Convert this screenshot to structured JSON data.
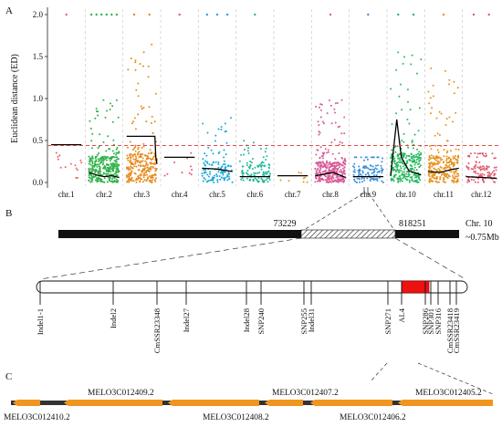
{
  "panels": {
    "a": {
      "label": "A",
      "chart_data": {
        "type": "scatter",
        "ylabel": "Euclidean distance (ED)",
        "xlabel": "",
        "ylim": [
          -0.05,
          2.1
        ],
        "yticks": [
          0.0,
          0.5,
          1.0,
          1.5,
          2.0
        ],
        "ytick_labels": [
          "0.0",
          "0.5",
          "1.0",
          "1.5",
          "2.0"
        ],
        "grid": "vertical dashed separators between chromosomes",
        "threshold": {
          "value": 0.44,
          "color": "#e8302a",
          "style": "dashed"
        },
        "categories": [
          "chr.1",
          "chr.2",
          "chr.3",
          "chr.4",
          "chr.5",
          "chr.6",
          "chr.7",
          "chr.8",
          "chr.9",
          "chr.10",
          "chr.11",
          "chr.12"
        ],
        "series": [
          {
            "category": "chr.1",
            "color": "#e06a5e",
            "n": 14,
            "bulk_max": 0.5,
            "spread": 0.15,
            "top_hits": 1,
            "fit": [
              [
                0.0,
                0.45
              ],
              [
                0.5,
                0.45
              ],
              [
                1.0,
                0.45
              ]
            ]
          },
          {
            "category": "chr.2",
            "color": "#31b24a",
            "n": 340,
            "bulk_max": 0.45,
            "spread": 1.0,
            "top_hits": 6,
            "fit": [
              [
                0.0,
                0.12
              ],
              [
                0.25,
                0.09
              ],
              [
                0.5,
                0.07
              ],
              [
                0.75,
                0.08
              ],
              [
                1.0,
                0.06
              ]
            ]
          },
          {
            "category": "chr.3",
            "color": "#e78a1e",
            "n": 260,
            "bulk_max": 0.5,
            "spread": 1.65,
            "top_hits": 2,
            "fit": [
              [
                0.0,
                0.55
              ],
              [
                0.5,
                0.55
              ],
              [
                0.93,
                0.55
              ],
              [
                0.96,
                0.3
              ],
              [
                1.0,
                0.22
              ]
            ]
          },
          {
            "category": "chr.4",
            "color": "#e05a70",
            "n": 10,
            "bulk_max": 0.35,
            "spread": 0.1,
            "top_hits": 1,
            "fit": [
              [
                0.0,
                0.3
              ],
              [
                1.0,
                0.3
              ]
            ]
          },
          {
            "category": "chr.5",
            "color": "#1aa8d8",
            "n": 120,
            "bulk_max": 0.35,
            "spread": 0.8,
            "top_hits": 3,
            "fit": [
              [
                0.0,
                0.17
              ],
              [
                0.5,
                0.16
              ],
              [
                1.0,
                0.13
              ]
            ]
          },
          {
            "category": "chr.6",
            "color": "#21b89a",
            "n": 110,
            "bulk_max": 0.3,
            "spread": 0.5,
            "top_hits": 1,
            "fit": [
              [
                0.0,
                0.07
              ],
              [
                1.0,
                0.07
              ]
            ]
          },
          {
            "category": "chr.7",
            "color": "#d6a21a",
            "n": 8,
            "bulk_max": 0.12,
            "spread": 0.0,
            "top_hits": 0,
            "fit": [
              [
                0.0,
                0.08
              ],
              [
                1.0,
                0.08
              ]
            ]
          },
          {
            "category": "chr.8",
            "color": "#d75d9a",
            "n": 340,
            "bulk_max": 0.35,
            "spread": 1.0,
            "top_hits": 1,
            "fit": [
              [
                0.0,
                0.08
              ],
              [
                0.3,
                0.1
              ],
              [
                0.6,
                0.12
              ],
              [
                1.0,
                0.06
              ]
            ]
          },
          {
            "category": "chr.9",
            "color": "#3c8ed8",
            "n": 110,
            "bulk_max": 0.3,
            "spread": 0.3,
            "top_hits": 1,
            "fit": [
              [
                0.0,
                0.07
              ],
              [
                1.0,
                0.07
              ]
            ]
          },
          {
            "category": "chr.10",
            "color": "#29b860",
            "n": 280,
            "bulk_max": 0.5,
            "spread": 1.7,
            "top_hits": 2,
            "fit": [
              [
                0.0,
                0.08
              ],
              [
                0.2,
                0.75
              ],
              [
                0.35,
                0.3
              ],
              [
                0.6,
                0.14
              ],
              [
                1.0,
                0.09
              ]
            ]
          },
          {
            "category": "chr.11",
            "color": "#e8921e",
            "n": 260,
            "bulk_max": 0.45,
            "spread": 1.4,
            "top_hits": 1,
            "fit": [
              [
                0.0,
                0.13
              ],
              [
                0.4,
                0.12
              ],
              [
                0.7,
                0.15
              ],
              [
                1.0,
                0.17
              ]
            ]
          },
          {
            "category": "chr.12",
            "color": "#e05a70",
            "n": 110,
            "bulk_max": 0.3,
            "spread": 0.35,
            "top_hits": 2,
            "fit": [
              [
                0.0,
                0.07
              ],
              [
                1.0,
                0.05
              ]
            ]
          }
        ]
      }
    },
    "b": {
      "label": "B",
      "chromosome_label": "Chr. 10",
      "size_label": "~0.75Mb",
      "left_pos": "73229",
      "right_pos": "818251",
      "markers": [
        "Indel1-1",
        "Indel2",
        "CmSSR23348",
        "Indel27",
        "Indel28",
        "SNP240",
        "SNP255",
        "Indel31",
        "SNP271",
        "AL4",
        "SNP286",
        "SNP301",
        "SNP316",
        "CmSSR23418",
        "CmSSR23419"
      ],
      "highlight_color": "#ee1111"
    },
    "c": {
      "label": "C",
      "genes_top": [
        "MELO3C012409.2",
        "MELO3C012407.2",
        "MELO3C012405.2"
      ],
      "genes_bottom": [
        "MELO3C012410.2",
        "MELO3C012408.2",
        "MELO3C012406.2"
      ],
      "gene_color": "#f0961e"
    }
  }
}
